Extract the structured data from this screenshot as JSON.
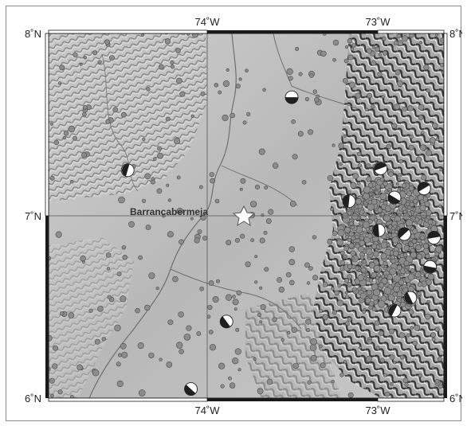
{
  "map": {
    "city": {
      "name": "Barrancabermeja",
      "lon": -73.85,
      "lat": 7.0
    },
    "lon_range": [
      -74.85,
      -72.85
    ],
    "lat_range": [
      6.0,
      8.0
    ],
    "top_labels": [
      "74˚W",
      "73˚W"
    ],
    "bottom_labels": [
      "74˚W",
      "73˚W"
    ],
    "left_labels": [
      "8˚N",
      "7˚N",
      "6˚N"
    ],
    "right_labels": [
      "8˚N",
      "7˚N",
      "6˚N"
    ],
    "colors": {
      "frame": "#1a1a1a",
      "grid": "#555555",
      "terrain_base": "#bdbdbd",
      "river": "#6f6f6f",
      "event_fill": "#8c8c8c",
      "event_stroke": "#4a4a4a",
      "star_fill": "#ffffff"
    },
    "focal_mechanisms": [
      {
        "lon": -73.62,
        "lat": 7.65
      },
      {
        "lon": -73.95,
        "lat": 6.42
      },
      {
        "lon": -74.45,
        "lat": 7.25
      },
      {
        "lon": -73.17,
        "lat": 7.26
      },
      {
        "lon": -73.1,
        "lat": 7.1
      },
      {
        "lon": -73.18,
        "lat": 6.92
      },
      {
        "lon": -73.05,
        "lat": 6.9
      },
      {
        "lon": -72.92,
        "lat": 6.72
      },
      {
        "lon": -73.02,
        "lat": 6.55
      },
      {
        "lon": -73.1,
        "lat": 6.48
      },
      {
        "lon": -72.9,
        "lat": 6.88
      },
      {
        "lon": -74.13,
        "lat": 6.05
      },
      {
        "lon": -73.33,
        "lat": 7.08
      },
      {
        "lon": -72.95,
        "lat": 7.15
      }
    ]
  }
}
